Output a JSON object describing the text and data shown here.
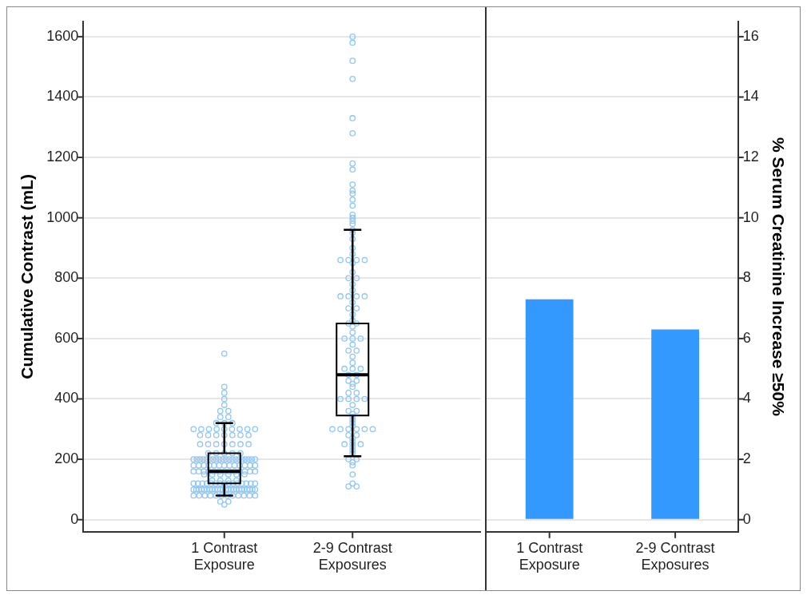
{
  "chart_data": [
    {
      "type": "box",
      "ylabel": "Cumulative Contrast (mL)",
      "categories": [
        "1 Contrast Exposure",
        "2-9 Contrast Exposures"
      ],
      "ylim": [
        -40,
        1650
      ],
      "yticks": [
        0,
        200,
        400,
        600,
        800,
        1000,
        1200,
        1400,
        1600
      ],
      "grid": "y",
      "marker": "circle",
      "boxes": [
        {
          "low": 80,
          "q1": 120,
          "median": 160,
          "q3": 220,
          "high": 320
        },
        {
          "low": 210,
          "q1": 345,
          "median": 480,
          "q3": 650,
          "high": 960
        }
      ],
      "series": [
        {
          "type": "scatter",
          "color": "#8ec5f7",
          "x": [
            "1 Contrast Exposure",
            "1 Contrast Exposure",
            "1 Contrast Exposure",
            "1 Contrast Exposure",
            "1 Contrast Exposure",
            "1 Contrast Exposure",
            "1 Contrast Exposure",
            "1 Contrast Exposure",
            "1 Contrast Exposure",
            "1 Contrast Exposure",
            "1 Contrast Exposure",
            "1 Contrast Exposure",
            "1 Contrast Exposure",
            "1 Contrast Exposure",
            "1 Contrast Exposure",
            "1 Contrast Exposure",
            "1 Contrast Exposure",
            "1 Contrast Exposure",
            "1 Contrast Exposure",
            "1 Contrast Exposure",
            "1 Contrast Exposure",
            "1 Contrast Exposure",
            "1 Contrast Exposure",
            "1 Contrast Exposure",
            "1 Contrast Exposure",
            "1 Contrast Exposure",
            "1 Contrast Exposure",
            "1 Contrast Exposure",
            "1 Contrast Exposure",
            "1 Contrast Exposure",
            "1 Contrast Exposure",
            "1 Contrast Exposure",
            "1 Contrast Exposure",
            "1 Contrast Exposure",
            "1 Contrast Exposure",
            "1 Contrast Exposure",
            "1 Contrast Exposure",
            "1 Contrast Exposure",
            "1 Contrast Exposure",
            "1 Contrast Exposure",
            "1 Contrast Exposure",
            "1 Contrast Exposure",
            "1 Contrast Exposure",
            "1 Contrast Exposure",
            "1 Contrast Exposure",
            "1 Contrast Exposure",
            "1 Contrast Exposure",
            "1 Contrast Exposure",
            "1 Contrast Exposure",
            "1 Contrast Exposure",
            "1 Contrast Exposure",
            "1 Contrast Exposure",
            "1 Contrast Exposure",
            "1 Contrast Exposure",
            "1 Contrast Exposure",
            "1 Contrast Exposure",
            "1 Contrast Exposure",
            "1 Contrast Exposure",
            "1 Contrast Exposure",
            "1 Contrast Exposure",
            "1 Contrast Exposure",
            "1 Contrast Exposure",
            "1 Contrast Exposure",
            "1 Contrast Exposure",
            "1 Contrast Exposure",
            "1 Contrast Exposure",
            "1 Contrast Exposure",
            "1 Contrast Exposure",
            "1 Contrast Exposure",
            "1 Contrast Exposure",
            "1 Contrast Exposure",
            "1 Contrast Exposure",
            "1 Contrast Exposure",
            "1 Contrast Exposure",
            "1 Contrast Exposure",
            "1 Contrast Exposure",
            "1 Contrast Exposure",
            "1 Contrast Exposure",
            "1 Contrast Exposure",
            "1 Contrast Exposure",
            "1 Contrast Exposure",
            "1 Contrast Exposure",
            "1 Contrast Exposure",
            "1 Contrast Exposure",
            "1 Contrast Exposure",
            "1 Contrast Exposure",
            "1 Contrast Exposure",
            "1 Contrast Exposure",
            "1 Contrast Exposure",
            "1 Contrast Exposure",
            "1 Contrast Exposure",
            "1 Contrast Exposure",
            "1 Contrast Exposure",
            "1 Contrast Exposure",
            "1 Contrast Exposure",
            "1 Contrast Exposure",
            "1 Contrast Exposure",
            "1 Contrast Exposure",
            "1 Contrast Exposure",
            "1 Contrast Exposure",
            "1 Contrast Exposure",
            "1 Contrast Exposure",
            "1 Contrast Exposure",
            "1 Contrast Exposure",
            "1 Contrast Exposure",
            "1 Contrast Exposure",
            "1 Contrast Exposure",
            "1 Contrast Exposure",
            "1 Contrast Exposure",
            "1 Contrast Exposure",
            "1 Contrast Exposure",
            "1 Contrast Exposure",
            "1 Contrast Exposure",
            "1 Contrast Exposure",
            "1 Contrast Exposure",
            "1 Contrast Exposure",
            "1 Contrast Exposure",
            "1 Contrast Exposure",
            "1 Contrast Exposure",
            "1 Contrast Exposure",
            "1 Contrast Exposure",
            "1 Contrast Exposure",
            "1 Contrast Exposure",
            "1 Contrast Exposure",
            "1 Contrast Exposure",
            "1 Contrast Exposure",
            "1 Contrast Exposure",
            "1 Contrast Exposure",
            "1 Contrast Exposure",
            "1 Contrast Exposure",
            "1 Contrast Exposure",
            "1 Contrast Exposure",
            "1 Contrast Exposure",
            "1 Contrast Exposure",
            "1 Contrast Exposure",
            "1 Contrast Exposure",
            "1 Contrast Exposure",
            "1 Contrast Exposure",
            "1 Contrast Exposure",
            "1 Contrast Exposure",
            "1 Contrast Exposure",
            "1 Contrast Exposure",
            "1 Contrast Exposure",
            "1 Contrast Exposure",
            "1 Contrast Exposure",
            "1 Contrast Exposure",
            "1 Contrast Exposure",
            "1 Contrast Exposure",
            "1 Contrast Exposure",
            "1 Contrast Exposure"
          ],
          "values": [
            550,
            440,
            420,
            400,
            380,
            360,
            360,
            340,
            340,
            320,
            320,
            320,
            300,
            300,
            300,
            300,
            300,
            300,
            300,
            300,
            300,
            280,
            280,
            280,
            280,
            280,
            280,
            280,
            250,
            250,
            250,
            250,
            250,
            250,
            250,
            220,
            220,
            220,
            220,
            220,
            200,
            200,
            200,
            200,
            200,
            200,
            200,
            200,
            200,
            200,
            200,
            200,
            200,
            200,
            200,
            200,
            200,
            200,
            200,
            200,
            180,
            180,
            180,
            180,
            180,
            180,
            180,
            180,
            180,
            180,
            180,
            180,
            180,
            160,
            160,
            160,
            160,
            160,
            160,
            160,
            160,
            160,
            160,
            160,
            160,
            160,
            150,
            150,
            150,
            150,
            150,
            150,
            130,
            130,
            130,
            130,
            120,
            120,
            120,
            120,
            120,
            120,
            120,
            120,
            120,
            120,
            120,
            120,
            120,
            120,
            120,
            100,
            100,
            100,
            100,
            100,
            100,
            100,
            100,
            100,
            100,
            100,
            100,
            100,
            100,
            100,
            100,
            100,
            100,
            100,
            100,
            100,
            100,
            100,
            100,
            80,
            80,
            80,
            80,
            80,
            80,
            80,
            80,
            80,
            80,
            80,
            80,
            60,
            60,
            50
          ]
        },
        {
          "type": "scatter",
          "color": "#8ec5f7",
          "x": [
            "2-9 Contrast Exposures",
            "2-9 Contrast Exposures",
            "2-9 Contrast Exposures",
            "2-9 Contrast Exposures",
            "2-9 Contrast Exposures",
            "2-9 Contrast Exposures",
            "2-9 Contrast Exposures",
            "2-9 Contrast Exposures",
            "2-9 Contrast Exposures",
            "2-9 Contrast Exposures",
            "2-9 Contrast Exposures",
            "2-9 Contrast Exposures",
            "2-9 Contrast Exposures",
            "2-9 Contrast Exposures",
            "2-9 Contrast Exposures",
            "2-9 Contrast Exposures",
            "2-9 Contrast Exposures",
            "2-9 Contrast Exposures",
            "2-9 Contrast Exposures",
            "2-9 Contrast Exposures",
            "2-9 Contrast Exposures",
            "2-9 Contrast Exposures",
            "2-9 Contrast Exposures",
            "2-9 Contrast Exposures",
            "2-9 Contrast Exposures",
            "2-9 Contrast Exposures",
            "2-9 Contrast Exposures",
            "2-9 Contrast Exposures",
            "2-9 Contrast Exposures",
            "2-9 Contrast Exposures",
            "2-9 Contrast Exposures",
            "2-9 Contrast Exposures",
            "2-9 Contrast Exposures",
            "2-9 Contrast Exposures",
            "2-9 Contrast Exposures",
            "2-9 Contrast Exposures",
            "2-9 Contrast Exposures",
            "2-9 Contrast Exposures",
            "2-9 Contrast Exposures",
            "2-9 Contrast Exposures",
            "2-9 Contrast Exposures",
            "2-9 Contrast Exposures",
            "2-9 Contrast Exposures",
            "2-9 Contrast Exposures",
            "2-9 Contrast Exposures",
            "2-9 Contrast Exposures",
            "2-9 Contrast Exposures",
            "2-9 Contrast Exposures",
            "2-9 Contrast Exposures",
            "2-9 Contrast Exposures",
            "2-9 Contrast Exposures",
            "2-9 Contrast Exposures",
            "2-9 Contrast Exposures",
            "2-9 Contrast Exposures",
            "2-9 Contrast Exposures",
            "2-9 Contrast Exposures",
            "2-9 Contrast Exposures",
            "2-9 Contrast Exposures",
            "2-9 Contrast Exposures",
            "2-9 Contrast Exposures",
            "2-9 Contrast Exposures",
            "2-9 Contrast Exposures",
            "2-9 Contrast Exposures",
            "2-9 Contrast Exposures",
            "2-9 Contrast Exposures",
            "2-9 Contrast Exposures",
            "2-9 Contrast Exposures",
            "2-9 Contrast Exposures",
            "2-9 Contrast Exposures",
            "2-9 Contrast Exposures",
            "2-9 Contrast Exposures",
            "2-9 Contrast Exposures",
            "2-9 Contrast Exposures",
            "2-9 Contrast Exposures",
            "2-9 Contrast Exposures",
            "2-9 Contrast Exposures",
            "2-9 Contrast Exposures",
            "2-9 Contrast Exposures",
            "2-9 Contrast Exposures",
            "2-9 Contrast Exposures",
            "2-9 Contrast Exposures",
            "2-9 Contrast Exposures",
            "2-9 Contrast Exposures",
            "2-9 Contrast Exposures",
            "2-9 Contrast Exposures",
            "2-9 Contrast Exposures",
            "2-9 Contrast Exposures",
            "2-9 Contrast Exposures",
            "2-9 Contrast Exposures",
            "2-9 Contrast Exposures",
            "2-9 Contrast Exposures",
            "2-9 Contrast Exposures",
            "2-9 Contrast Exposures",
            "2-9 Contrast Exposures",
            "2-9 Contrast Exposures",
            "2-9 Contrast Exposures",
            "2-9 Contrast Exposures",
            "2-9 Contrast Exposures",
            "2-9 Contrast Exposures",
            "2-9 Contrast Exposures"
          ],
          "values": [
            1600,
            1580,
            1520,
            1460,
            1330,
            1280,
            1180,
            1160,
            1110,
            1090,
            1080,
            1060,
            1040,
            1010,
            1000,
            990,
            980,
            960,
            950,
            930,
            900,
            880,
            860,
            860,
            860,
            860,
            850,
            820,
            800,
            800,
            780,
            760,
            740,
            740,
            740,
            740,
            720,
            700,
            700,
            680,
            660,
            650,
            650,
            640,
            620,
            600,
            600,
            600,
            580,
            560,
            560,
            540,
            520,
            500,
            500,
            500,
            480,
            480,
            460,
            460,
            450,
            440,
            420,
            420,
            400,
            400,
            400,
            400,
            380,
            360,
            360,
            350,
            340,
            330,
            320,
            310,
            300,
            300,
            300,
            300,
            300,
            300,
            280,
            280,
            270,
            260,
            250,
            250,
            250,
            240,
            230,
            220,
            200,
            200,
            190,
            180,
            150,
            120,
            110,
            110
          ]
        }
      ]
    },
    {
      "type": "bar",
      "y2label": "% Serum Creatinine Increase ≥50%",
      "categories": [
        "1 Contrast Exposure",
        "2-9 Contrast Exposures"
      ],
      "y2lim": [
        -0.4,
        16.5
      ],
      "y2ticks": [
        0,
        2,
        4,
        6,
        8,
        10,
        12,
        14,
        16
      ],
      "grid": "y",
      "series": [
        {
          "color": "#3399ff",
          "axis": "y2",
          "values": [
            7.3,
            6.3
          ]
        }
      ]
    }
  ]
}
